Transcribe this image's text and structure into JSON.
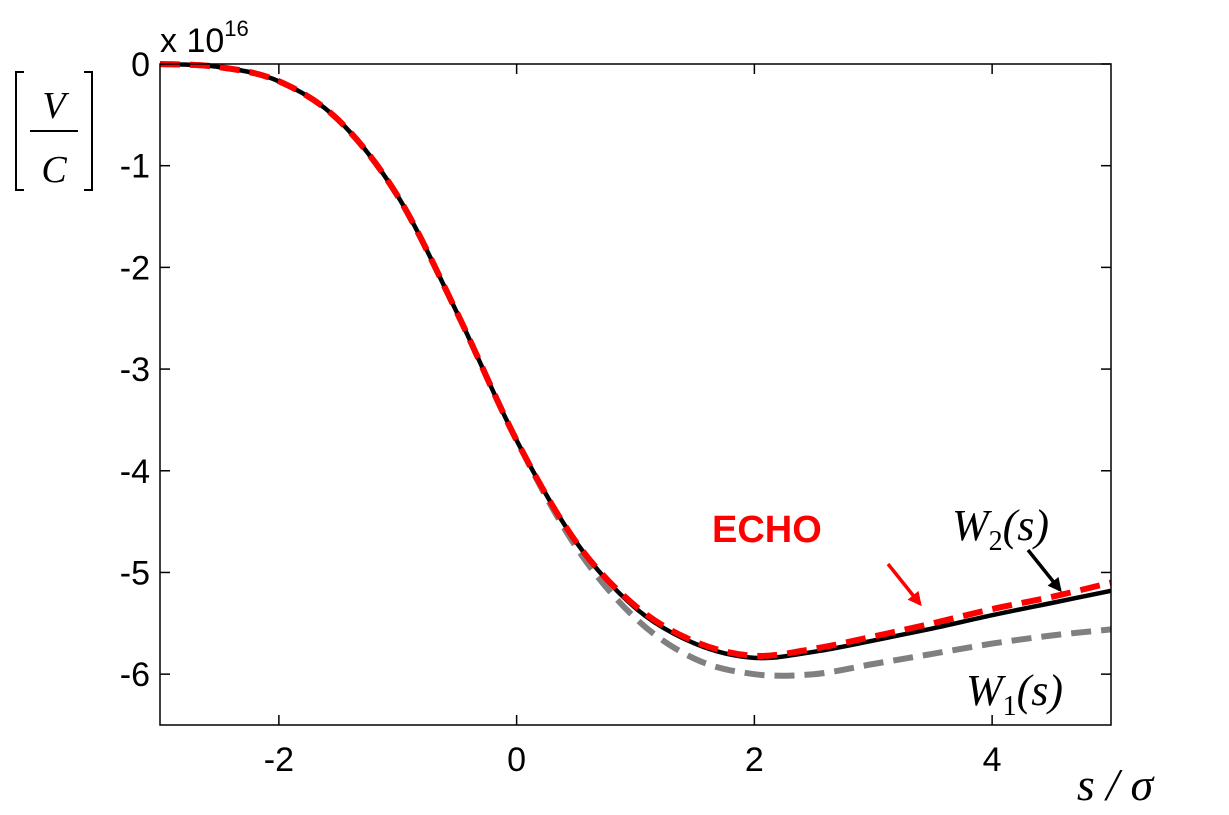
{
  "chart_data": {
    "type": "line",
    "title": "",
    "xlabel": "s / σ",
    "ylabel": "[V/C]",
    "ylabel_numerator": "V",
    "ylabel_denominator": "C",
    "y_multiplier": "x 10",
    "y_multiplier_exponent": "16",
    "xlim": [
      -3,
      5
    ],
    "ylim": [
      -6.5,
      0
    ],
    "xticks": [
      -2,
      0,
      2,
      4
    ],
    "yticks": [
      0,
      -1,
      -2,
      -3,
      -4,
      -5,
      -6
    ],
    "xtick_labels": [
      "-2",
      "0",
      "2",
      "4"
    ],
    "ytick_labels": [
      "0",
      "-1",
      "-2",
      "-3",
      "-4",
      "-5",
      "-6"
    ],
    "grid": false,
    "series": [
      {
        "name": "W1(s)",
        "label_main": "W",
        "label_sub": "1",
        "label_arg": "(s)",
        "color": "#808080",
        "style": "dashed",
        "x": [
          -3,
          -2.5,
          -2,
          -1.5,
          -1,
          -0.5,
          0,
          0.5,
          1,
          1.5,
          2,
          2.5,
          3,
          3.5,
          4,
          4.5,
          5
        ],
        "y": [
          0,
          -0.03,
          -0.17,
          -0.55,
          -1.3,
          -2.45,
          -3.7,
          -4.75,
          -5.45,
          -5.85,
          -6.0,
          -6.0,
          -5.9,
          -5.8,
          -5.7,
          -5.62,
          -5.56
        ]
      },
      {
        "name": "W2(s)",
        "label_main": "W",
        "label_sub": "2",
        "label_arg": "(s)",
        "color": "#000000",
        "style": "solid",
        "x": [
          -3,
          -2.5,
          -2,
          -1.5,
          -1,
          -0.5,
          0,
          0.5,
          1,
          1.5,
          2,
          2.5,
          3,
          3.5,
          4,
          4.5,
          5
        ],
        "y": [
          0,
          -0.03,
          -0.17,
          -0.55,
          -1.3,
          -2.45,
          -3.7,
          -4.7,
          -5.35,
          -5.7,
          -5.84,
          -5.78,
          -5.67,
          -5.55,
          -5.42,
          -5.3,
          -5.18
        ]
      },
      {
        "name": "ECHO",
        "color": "#ff0000",
        "style": "dashed",
        "x": [
          -3,
          -2.5,
          -2,
          -1.5,
          -1,
          -0.5,
          0,
          0.5,
          1,
          1.5,
          2,
          2.5,
          3,
          3.5,
          4,
          4.5,
          5
        ],
        "y": [
          0,
          -0.03,
          -0.17,
          -0.55,
          -1.3,
          -2.45,
          -3.7,
          -4.7,
          -5.33,
          -5.68,
          -5.82,
          -5.75,
          -5.63,
          -5.5,
          -5.36,
          -5.24,
          -5.1
        ]
      }
    ],
    "annotations": [
      {
        "text": "ECHO",
        "color": "#ff0000",
        "arrow_to": [
          3.5,
          -5.43
        ]
      },
      {
        "text": "W2(s)",
        "color": "#000000",
        "arrow_to": [
          4.6,
          -5.25
        ]
      },
      {
        "text": "W1(s)",
        "color": "#000000"
      }
    ]
  }
}
